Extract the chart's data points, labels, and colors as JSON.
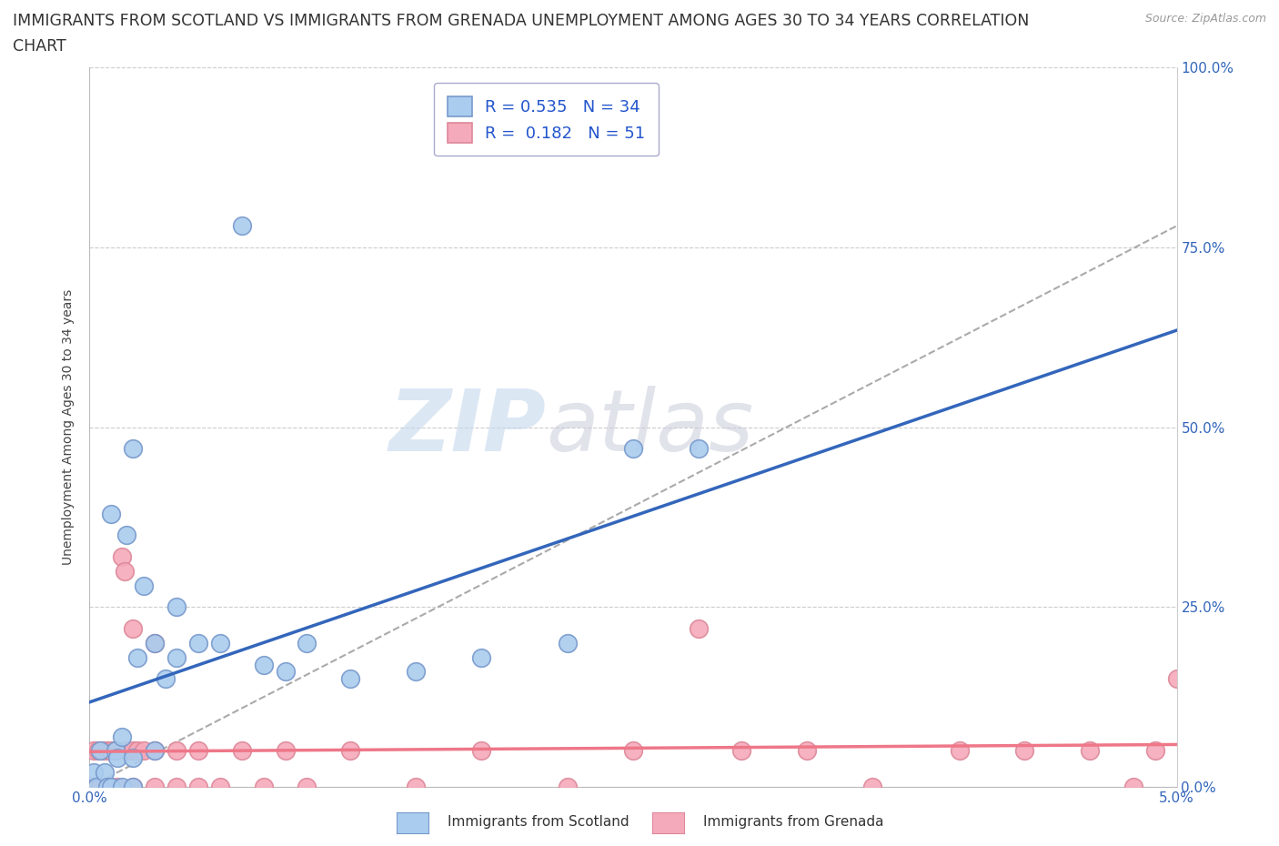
{
  "title_line1": "IMMIGRANTS FROM SCOTLAND VS IMMIGRANTS FROM GRENADA UNEMPLOYMENT AMONG AGES 30 TO 34 YEARS CORRELATION",
  "title_line2": "CHART",
  "source": "Source: ZipAtlas.com",
  "ylabel": "Unemployment Among Ages 30 to 34 years",
  "xlim": [
    0.0,
    0.05
  ],
  "ylim": [
    0.0,
    1.0
  ],
  "x_ticks": [
    0.0,
    0.01,
    0.02,
    0.03,
    0.04,
    0.05
  ],
  "x_tick_labels": [
    "0.0%",
    "",
    "",
    "",
    "",
    "5.0%"
  ],
  "y_ticks": [
    0.0,
    0.25,
    0.5,
    0.75,
    1.0
  ],
  "y_tick_labels": [
    "0.0%",
    "25.0%",
    "50.0%",
    "75.0%",
    "100.0%"
  ],
  "scotland_color": "#aaccee",
  "grenada_color": "#f5aabb",
  "scotland_edge": "#7799cc",
  "grenada_edge": "#dd8899",
  "line_scotland_color": "#3366bb",
  "line_grenada_color": "#ee7788",
  "R_scotland": 0.535,
  "N_scotland": 34,
  "R_grenada": 0.182,
  "N_grenada": 51,
  "legend_label_scotland": "Immigrants from Scotland",
  "legend_label_grenada": "Immigrants from Grenada",
  "watermark_zip": "ZIP",
  "watermark_atlas": "atlas",
  "scotland_x": [
    0.0002,
    0.0003,
    0.0005,
    0.0007,
    0.0008,
    0.001,
    0.001,
    0.0012,
    0.0013,
    0.0015,
    0.0015,
    0.0017,
    0.002,
    0.002,
    0.002,
    0.0022,
    0.0025,
    0.003,
    0.003,
    0.0035,
    0.004,
    0.004,
    0.005,
    0.006,
    0.007,
    0.008,
    0.009,
    0.01,
    0.012,
    0.015,
    0.018,
    0.022,
    0.025,
    0.028
  ],
  "scotland_y": [
    0.02,
    0.0,
    0.05,
    0.02,
    0.0,
    0.38,
    0.0,
    0.05,
    0.04,
    0.0,
    0.07,
    0.35,
    0.0,
    0.04,
    0.47,
    0.18,
    0.28,
    0.05,
    0.2,
    0.15,
    0.18,
    0.25,
    0.2,
    0.2,
    0.78,
    0.17,
    0.16,
    0.2,
    0.15,
    0.16,
    0.18,
    0.2,
    0.47,
    0.47
  ],
  "grenada_x": [
    0.0001,
    0.0002,
    0.0003,
    0.0004,
    0.0005,
    0.0006,
    0.0007,
    0.0008,
    0.0009,
    0.001,
    0.001,
    0.0012,
    0.0013,
    0.0015,
    0.0016,
    0.0017,
    0.002,
    0.002,
    0.002,
    0.0022,
    0.0025,
    0.003,
    0.003,
    0.003,
    0.004,
    0.004,
    0.005,
    0.005,
    0.006,
    0.007,
    0.008,
    0.009,
    0.01,
    0.012,
    0.015,
    0.018,
    0.022,
    0.025,
    0.028,
    0.03,
    0.033,
    0.036,
    0.04,
    0.043,
    0.046,
    0.048,
    0.049,
    0.05,
    0.0001,
    0.0003,
    0.0005
  ],
  "grenada_y": [
    0.0,
    0.05,
    0.0,
    0.05,
    0.0,
    0.05,
    0.0,
    0.05,
    0.0,
    0.05,
    0.0,
    0.05,
    0.0,
    0.32,
    0.3,
    0.05,
    0.0,
    0.05,
    0.22,
    0.05,
    0.05,
    0.0,
    0.05,
    0.2,
    0.05,
    0.0,
    0.0,
    0.05,
    0.0,
    0.05,
    0.0,
    0.05,
    0.0,
    0.05,
    0.0,
    0.05,
    0.0,
    0.05,
    0.22,
    0.05,
    0.05,
    0.0,
    0.05,
    0.05,
    0.05,
    0.0,
    0.05,
    0.15,
    0.0,
    0.0,
    0.0
  ],
  "bg_color": "#ffffff",
  "grid_color": "#cccccc",
  "title_fontsize": 12.5,
  "axis_label_fontsize": 10,
  "tick_fontsize": 11,
  "legend_fontsize": 13
}
